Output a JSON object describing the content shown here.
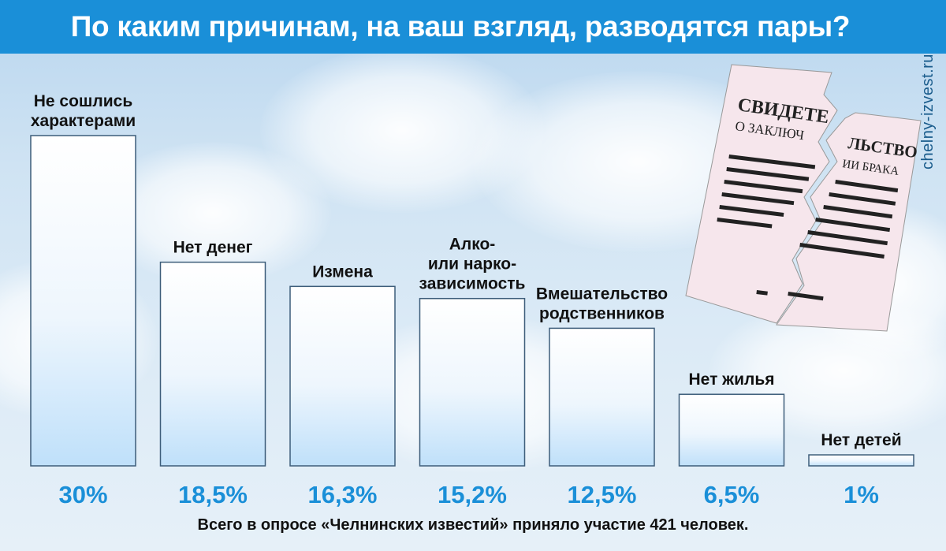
{
  "title": "По каким причинам, на ваш взгляд, разводятся пары?",
  "watermark": "chelny-izvest.ru",
  "document_text": {
    "line1_left": "СВИДЕТЕ",
    "line1_right": "ЛЬСТВО",
    "line2_left": "О ЗАКЛЮЧ",
    "line2_right": "ИИ БРАКА"
  },
  "footnote": "Всего в опросе «Челнинских известий» приняло участие 421 человек.",
  "colors": {
    "title_bar": "#1a8fd8",
    "value_text": "#1a8fd8",
    "document": "#f6e6ec"
  },
  "chart_data": {
    "type": "bar",
    "categories": [
      [
        "Не сошлись",
        "характерами"
      ],
      [
        "Нет денег"
      ],
      [
        "Измена"
      ],
      [
        "Алко-",
        "или нарко-",
        "зависимость"
      ],
      [
        "Вмешательство",
        "родственников"
      ],
      [
        "Нет жилья"
      ],
      [
        "Нет детей"
      ]
    ],
    "values": [
      30,
      18.5,
      16.3,
      15.2,
      12.5,
      6.5,
      1
    ],
    "value_labels": [
      "30%",
      "18,5%",
      "16,3%",
      "15,2%",
      "12,5%",
      "6,5%",
      "1%"
    ],
    "unit": "%"
  }
}
